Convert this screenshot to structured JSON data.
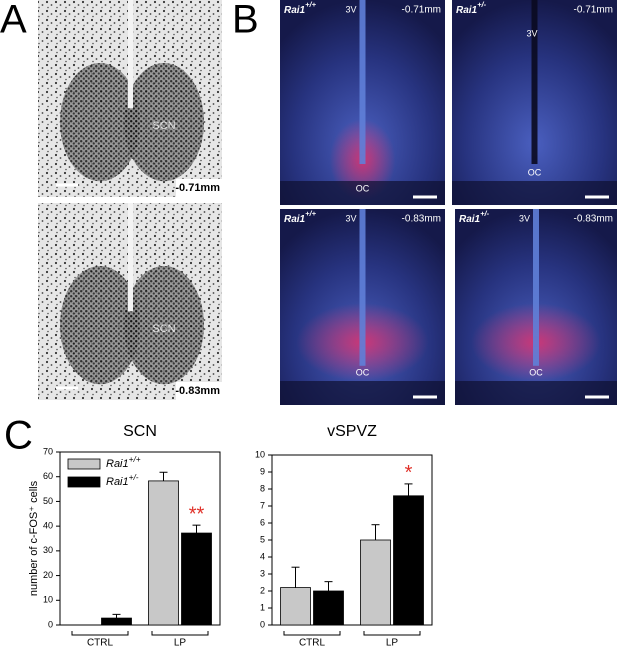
{
  "panel_labels": [
    "A",
    "B",
    "C"
  ],
  "panel_a": {
    "depths": [
      "-0.71mm",
      "-0.83mm"
    ],
    "region_labels": [
      "SCN",
      "SCN"
    ]
  },
  "panel_b": {
    "images": [
      {
        "genotype": "Rai1+/+",
        "depth": "-0.71mm",
        "ventricle": "3V",
        "chiasm": "OC"
      },
      {
        "genotype": "Rai1+/-",
        "depth": "-0.71mm",
        "ventricle": "3V",
        "chiasm": "OC"
      },
      {
        "genotype": "Rai1+/+",
        "depth": "-0.83mm",
        "ventricle": "3V",
        "chiasm": "OC"
      },
      {
        "genotype": "Rai1+/-",
        "depth": "-0.83mm",
        "ventricle": "3V",
        "chiasm": "OC"
      }
    ]
  },
  "chart_data": [
    {
      "type": "bar",
      "title": "SCN",
      "y_label": "number of c-FOS⁺ cells",
      "categories": [
        "CTRL",
        "LP"
      ],
      "ylim": [
        0,
        70
      ],
      "yticks": [
        0,
        10,
        20,
        30,
        40,
        50,
        60,
        70
      ],
      "series": [
        {
          "name": "Rai1+/+",
          "color": "#c8c8c8",
          "values": [
            0,
            58.3
          ],
          "errors": [
            0,
            3.5
          ],
          "significance": [
            null,
            null
          ]
        },
        {
          "name": "Rai1+/-",
          "color": "#000000",
          "values": [
            2.8,
            37.2
          ],
          "errors": [
            1.5,
            3.2
          ],
          "significance": [
            null,
            "**"
          ]
        }
      ]
    },
    {
      "type": "bar",
      "title": "vSPVZ",
      "categories": [
        "CTRL",
        "LP"
      ],
      "ylim": [
        0,
        10
      ],
      "yticks": [
        0,
        1,
        2,
        3,
        4,
        5,
        6,
        7,
        8,
        9,
        10
      ],
      "series": [
        {
          "color": "#c8c8c8",
          "values": [
            2.2,
            5.0
          ],
          "errors": [
            1.2,
            0.9
          ],
          "significance": [
            null,
            null
          ]
        },
        {
          "color": "#000000",
          "values": [
            2.0,
            7.6
          ],
          "errors": [
            0.55,
            0.7
          ],
          "significance": [
            null,
            "*"
          ]
        }
      ]
    }
  ]
}
